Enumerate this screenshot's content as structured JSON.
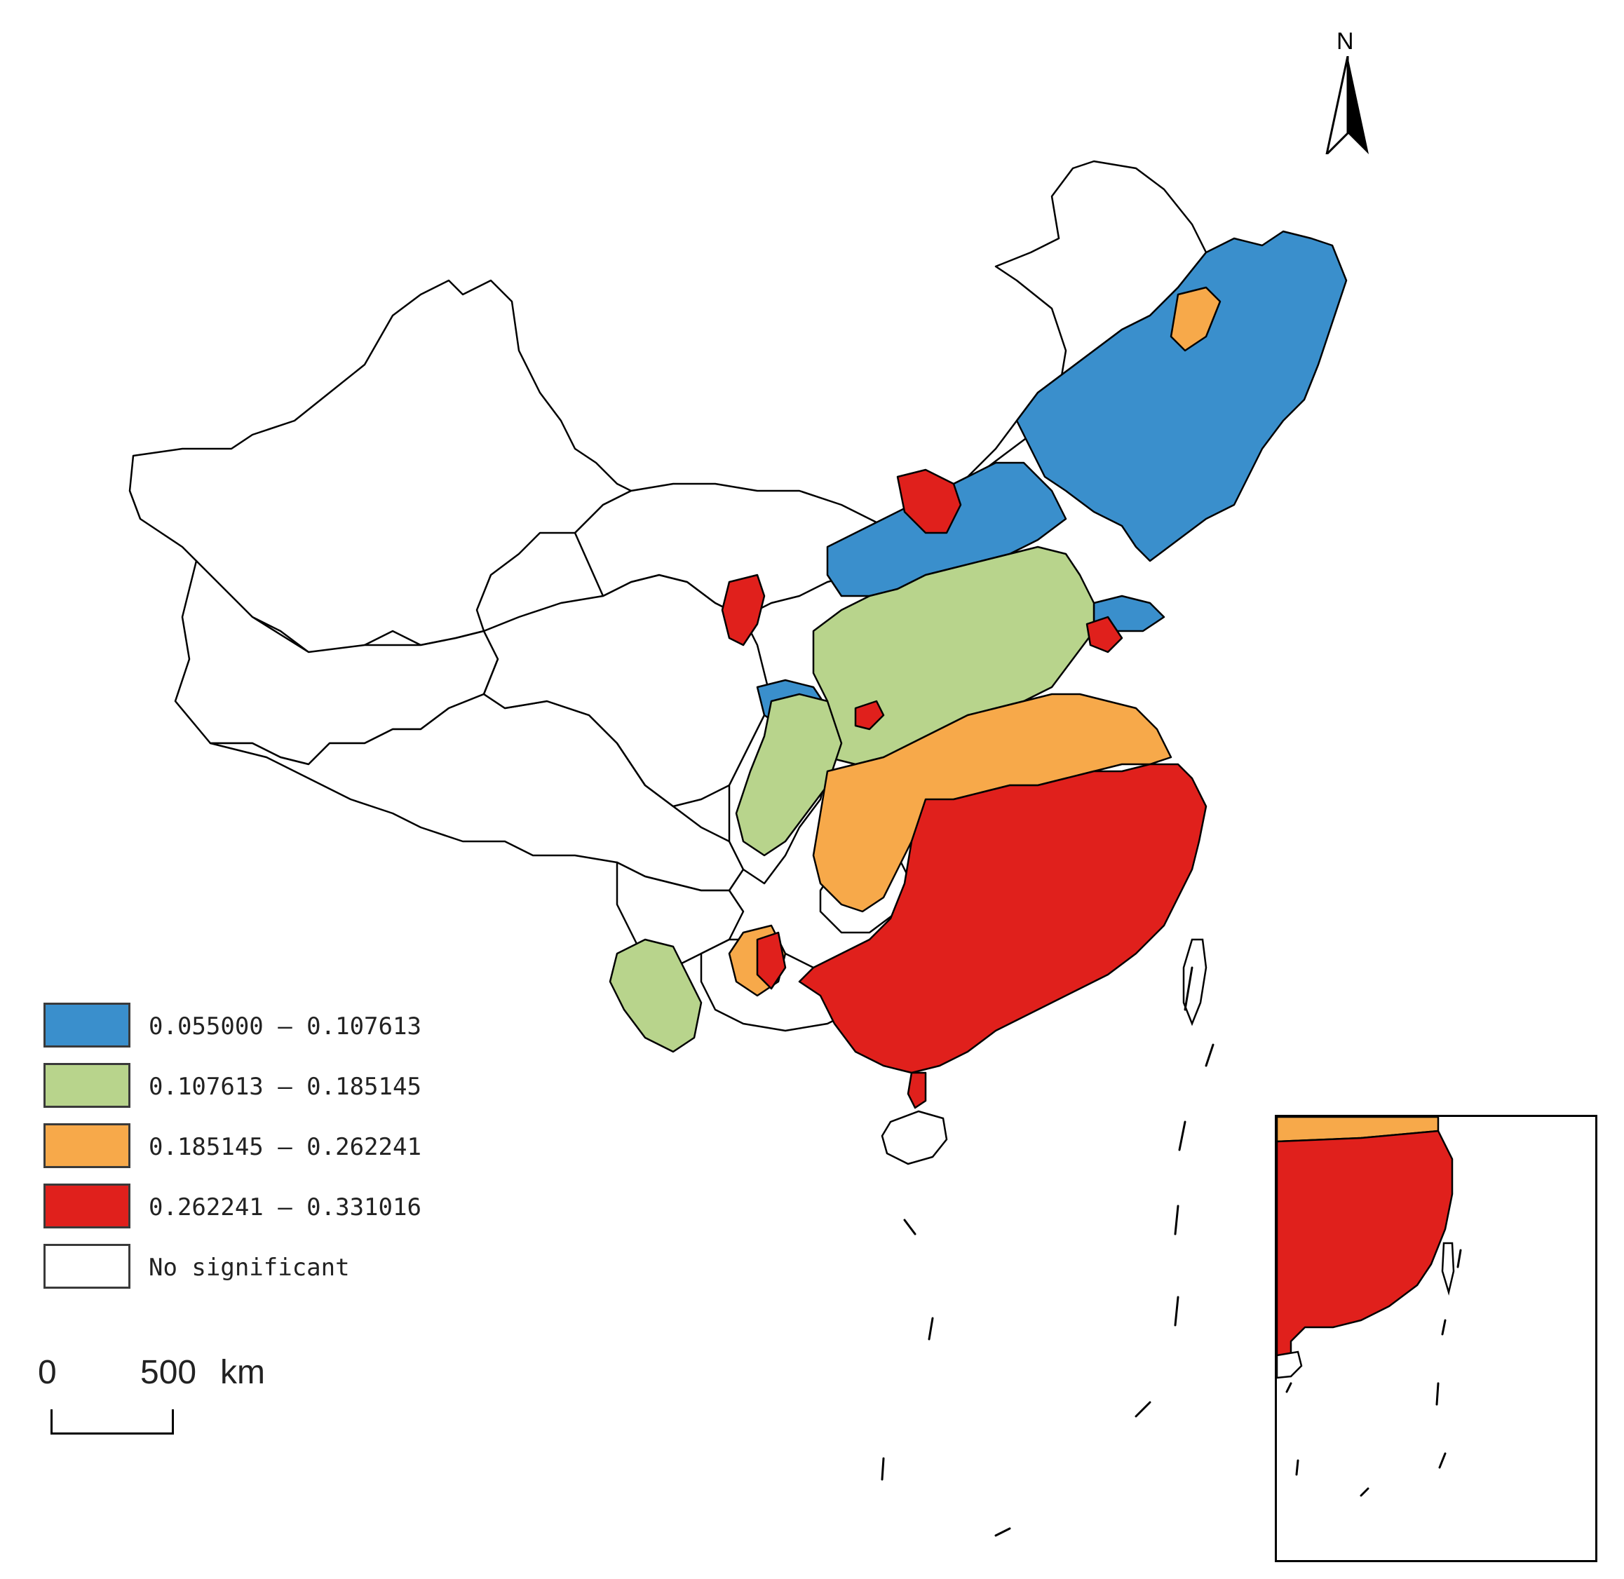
{
  "map": {
    "north_label": "N",
    "scale_labels": {
      "zero": "0",
      "distance": "500",
      "unit": "km"
    },
    "legend": [
      {
        "label": "0.055000 — 0.107613",
        "color": "#3a8fcc"
      },
      {
        "label": "0.107613 — 0.185145",
        "color": "#b8d48c"
      },
      {
        "label": "0.185145 — 0.262241",
        "color": "#f7a94a"
      },
      {
        "label": "0.262241 — 0.331016",
        "color": "#e0201c"
      },
      {
        "label": "No significant",
        "color": "#ffffff"
      }
    ]
  }
}
